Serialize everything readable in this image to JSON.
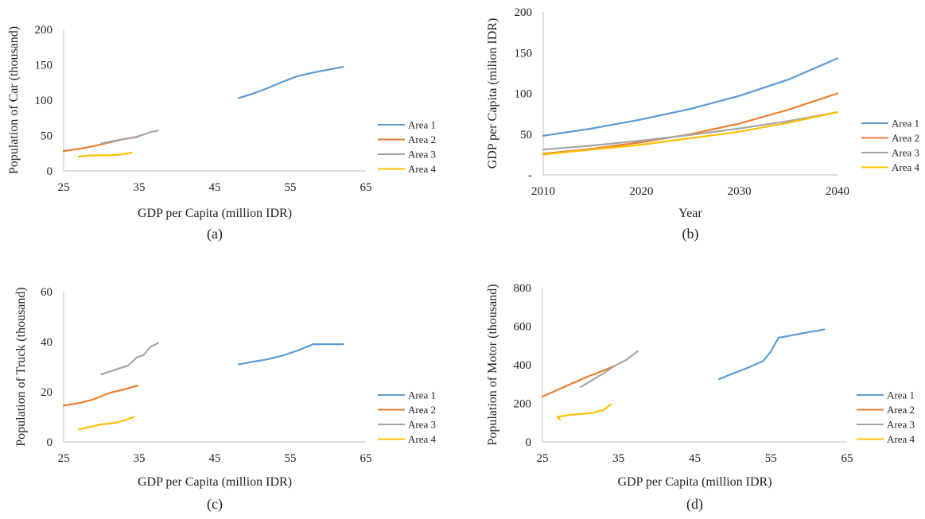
{
  "colors": {
    "Area 1": "#5b9bd5",
    "Area 2": "#ed7d31",
    "Area 3": "#a5a5a5",
    "Area 4": "#ffc000",
    "axis": "#bfbfbf"
  },
  "chart_data": [
    {
      "type": "line",
      "panel_label": "(a)",
      "xlabel": "GDP per Capita (million IDR)",
      "ylabel": "Population of Car (thousand)",
      "xlim": [
        25,
        65
      ],
      "ylim": [
        0,
        200
      ],
      "xticks": [
        "25",
        "35",
        "45",
        "55",
        "65"
      ],
      "yticks": [
        "0",
        "50",
        "100",
        "150",
        "200"
      ],
      "legend_position": "right",
      "series": [
        {
          "name": "Area 1",
          "points": [
            [
              48.2,
              103
            ],
            [
              50,
              109
            ],
            [
              52,
              117
            ],
            [
              54,
              126
            ],
            [
              56,
              134
            ],
            [
              58,
              139
            ],
            [
              60,
              143
            ],
            [
              62,
              147
            ]
          ]
        },
        {
          "name": "Area 2",
          "points": [
            [
              25,
              28
            ],
            [
              27,
              31
            ],
            [
              29,
              35
            ],
            [
              31,
              40
            ],
            [
              33,
              45
            ],
            [
              34.8,
              48
            ]
          ]
        },
        {
          "name": "Area 3",
          "points": [
            [
              30,
              39
            ],
            [
              31.5,
              42
            ],
            [
              33,
              45
            ],
            [
              34.5,
              48
            ],
            [
              35.5,
              51
            ],
            [
              36.5,
              55
            ],
            [
              37.5,
              57
            ]
          ]
        },
        {
          "name": "Area 4",
          "points": [
            [
              27,
              20
            ],
            [
              28,
              21.5
            ],
            [
              29.5,
              22
            ],
            [
              31,
              22
            ],
            [
              32.5,
              23
            ],
            [
              34,
              26
            ]
          ]
        }
      ]
    },
    {
      "type": "line",
      "panel_label": "(b)",
      "xlabel": "Year",
      "ylabel": "GDP per Capita (milion IDR)",
      "xlim": [
        2010,
        2040
      ],
      "ylim": [
        0,
        200
      ],
      "xticks": [
        "2010",
        "2020",
        "2030",
        "2040"
      ],
      "yticks": [
        "-",
        "50",
        "100",
        "150",
        "200"
      ],
      "legend_position": "right",
      "series": [
        {
          "name": "Area 1",
          "points": [
            [
              2010,
              48
            ],
            [
              2015,
              57
            ],
            [
              2020,
              68
            ],
            [
              2025,
              81
            ],
            [
              2030,
              97
            ],
            [
              2035,
              117
            ],
            [
              2040,
              143
            ]
          ]
        },
        {
          "name": "Area 2",
          "points": [
            [
              2010,
              26
            ],
            [
              2015,
              32
            ],
            [
              2020,
              40
            ],
            [
              2025,
              50
            ],
            [
              2030,
              63
            ],
            [
              2035,
              80
            ],
            [
              2040,
              100
            ]
          ]
        },
        {
          "name": "Area 3",
          "points": [
            [
              2010,
              31
            ],
            [
              2015,
              36
            ],
            [
              2020,
              42
            ],
            [
              2025,
              49
            ],
            [
              2030,
              57
            ],
            [
              2035,
              66
            ],
            [
              2040,
              77
            ]
          ]
        },
        {
          "name": "Area 4",
          "points": [
            [
              2010,
              25
            ],
            [
              2015,
              31
            ],
            [
              2020,
              37
            ],
            [
              2025,
              45
            ],
            [
              2030,
              53
            ],
            [
              2035,
              64
            ],
            [
              2040,
              77
            ]
          ]
        }
      ]
    },
    {
      "type": "line",
      "panel_label": "(c)",
      "xlabel": "GDP per Capita (million IDR)",
      "ylabel": "Population of Truck (thousand)",
      "xlim": [
        25,
        65
      ],
      "ylim": [
        0,
        60
      ],
      "xticks": [
        "25",
        "35",
        "45",
        "55",
        "65"
      ],
      "yticks": [
        "0",
        "20",
        "40",
        "60"
      ],
      "legend_position": "right",
      "series": [
        {
          "name": "Area 1",
          "points": [
            [
              48.2,
              31
            ],
            [
              50,
              32
            ],
            [
              52,
              33
            ],
            [
              54,
              34.5
            ],
            [
              56,
              36.5
            ],
            [
              58,
              39
            ],
            [
              60,
              39
            ],
            [
              62,
              39
            ]
          ]
        },
        {
          "name": "Area 2",
          "points": [
            [
              25,
              14.5
            ],
            [
              27,
              15.5
            ],
            [
              29,
              17
            ],
            [
              31,
              19.5
            ],
            [
              33,
              21
            ],
            [
              34.8,
              22.5
            ]
          ]
        },
        {
          "name": "Area 3",
          "points": [
            [
              30,
              27
            ],
            [
              31.5,
              28.5
            ],
            [
              33.5,
              30.5
            ],
            [
              34.8,
              34
            ],
            [
              35.5,
              34.5
            ],
            [
              36.5,
              38
            ],
            [
              37.5,
              39.5
            ]
          ]
        },
        {
          "name": "Area 4",
          "points": [
            [
              27,
              5
            ],
            [
              28.5,
              6
            ],
            [
              30,
              7
            ],
            [
              31.5,
              7.5
            ],
            [
              33,
              8.5
            ],
            [
              34.3,
              10
            ]
          ]
        }
      ]
    },
    {
      "type": "line",
      "panel_label": "(d)",
      "xlabel": "GDP per Capita (million IDR)",
      "ylabel": "Population of Motor (thousand)",
      "xlim": [
        25,
        65
      ],
      "ylim": [
        0,
        800
      ],
      "xticks": [
        "25",
        "35",
        "45",
        "55",
        "65"
      ],
      "yticks": [
        "0",
        "200",
        "400",
        "600",
        "800"
      ],
      "legend_position": "right",
      "series": [
        {
          "name": "Area 1",
          "points": [
            [
              48.2,
              325
            ],
            [
              50,
              355
            ],
            [
              52,
              385
            ],
            [
              54,
              420
            ],
            [
              55,
              470
            ],
            [
              56,
              540
            ],
            [
              58,
              555
            ],
            [
              60,
              570
            ],
            [
              62,
              583
            ]
          ]
        },
        {
          "name": "Area 2",
          "points": [
            [
              25,
              235
            ],
            [
              27,
              270
            ],
            [
              29,
              305
            ],
            [
              31,
              340
            ],
            [
              33,
              370
            ],
            [
              34.5,
              395
            ]
          ]
        },
        {
          "name": "Area 3",
          "points": [
            [
              30,
              285
            ],
            [
              31.5,
              320
            ],
            [
              33,
              355
            ],
            [
              34.5,
              395
            ],
            [
              36,
              425
            ],
            [
              37.5,
              470
            ]
          ]
        },
        {
          "name": "Area 4",
          "points": [
            [
              27.3,
              115
            ],
            [
              27,
              130
            ],
            [
              28.5,
              140
            ],
            [
              30,
              145
            ],
            [
              31.5,
              150
            ],
            [
              33,
              165
            ],
            [
              34,
              195
            ]
          ]
        }
      ]
    }
  ]
}
